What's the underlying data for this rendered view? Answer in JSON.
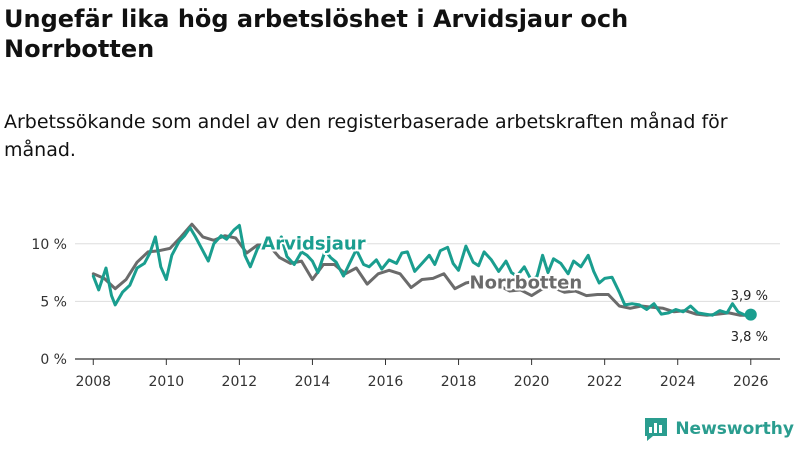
{
  "title": "Ungefär lika hög arbetslöshet i Arvidsjaur och Norrbotten",
  "subtitle": "Arbetssökande som andel av den registerbaserade arbetskraften månad för månad.",
  "brand": "Newsworthy",
  "colors": {
    "arvidsjaur": "#1a9e8f",
    "norrbotten": "#6b6b6b",
    "grid": "#dddddd",
    "axis": "#333333",
    "brand": "#2a9d8f"
  },
  "chart_data": {
    "type": "line",
    "title": "Ungefär lika hög arbetslöshet i Arvidsjaur och Norrbotten",
    "xlabel": "",
    "ylabel": "",
    "xlim": [
      2007.5,
      2026.8
    ],
    "ylim": [
      0,
      12.5
    ],
    "x_ticks": [
      2008,
      2010,
      2012,
      2014,
      2016,
      2018,
      2020,
      2022,
      2024,
      2026
    ],
    "x_tick_labels": [
      "2008",
      "2010",
      "2012",
      "2014",
      "2016",
      "2018",
      "2020",
      "2022",
      "2024",
      "2026"
    ],
    "y_ticks": [
      0,
      5,
      10
    ],
    "y_tick_labels": [
      "0 %",
      "5 %",
      "10 %"
    ],
    "grid": true,
    "series": [
      {
        "name": "Arvidsjaur",
        "label_at": [
          2012.6,
          9.5
        ],
        "points": [
          [
            2008.0,
            7.2
          ],
          [
            2008.15,
            6.0
          ],
          [
            2008.35,
            7.9
          ],
          [
            2008.5,
            5.5
          ],
          [
            2008.6,
            4.7
          ],
          [
            2008.8,
            5.8
          ],
          [
            2009.0,
            6.4
          ],
          [
            2009.2,
            7.9
          ],
          [
            2009.4,
            8.3
          ],
          [
            2009.55,
            9.2
          ],
          [
            2009.7,
            10.6
          ],
          [
            2009.85,
            8.0
          ],
          [
            2010.0,
            6.9
          ],
          [
            2010.15,
            9.0
          ],
          [
            2010.35,
            10.2
          ],
          [
            2010.5,
            10.7
          ],
          [
            2010.65,
            11.4
          ],
          [
            2010.8,
            10.6
          ],
          [
            2011.0,
            9.4
          ],
          [
            2011.15,
            8.5
          ],
          [
            2011.3,
            10.0
          ],
          [
            2011.5,
            10.7
          ],
          [
            2011.65,
            10.4
          ],
          [
            2011.85,
            11.2
          ],
          [
            2012.0,
            11.6
          ],
          [
            2012.15,
            9.0
          ],
          [
            2012.3,
            8.0
          ],
          [
            2012.5,
            9.6
          ],
          [
            2012.65,
            10.0
          ],
          [
            2012.8,
            9.8
          ],
          [
            2012.95,
            9.5
          ],
          [
            2013.15,
            10.6
          ],
          [
            2013.3,
            8.9
          ],
          [
            2013.5,
            8.2
          ],
          [
            2013.7,
            9.3
          ],
          [
            2013.85,
            9.0
          ],
          [
            2014.0,
            8.5
          ],
          [
            2014.15,
            7.5
          ],
          [
            2014.35,
            9.4
          ],
          [
            2014.5,
            8.8
          ],
          [
            2014.65,
            8.4
          ],
          [
            2014.85,
            7.2
          ],
          [
            2015.0,
            8.2
          ],
          [
            2015.2,
            9.5
          ],
          [
            2015.4,
            8.2
          ],
          [
            2015.55,
            8.0
          ],
          [
            2015.75,
            8.6
          ],
          [
            2015.9,
            7.8
          ],
          [
            2016.1,
            8.6
          ],
          [
            2016.3,
            8.3
          ],
          [
            2016.45,
            9.2
          ],
          [
            2016.6,
            9.3
          ],
          [
            2016.8,
            7.6
          ],
          [
            2017.0,
            8.3
          ],
          [
            2017.2,
            9.0
          ],
          [
            2017.35,
            8.2
          ],
          [
            2017.5,
            9.4
          ],
          [
            2017.7,
            9.7
          ],
          [
            2017.85,
            8.3
          ],
          [
            2018.0,
            7.7
          ],
          [
            2018.2,
            9.8
          ],
          [
            2018.4,
            8.4
          ],
          [
            2018.55,
            8.1
          ],
          [
            2018.7,
            9.3
          ],
          [
            2018.9,
            8.6
          ],
          [
            2019.1,
            7.6
          ],
          [
            2019.3,
            8.5
          ],
          [
            2019.45,
            7.5
          ],
          [
            2019.6,
            7.2
          ],
          [
            2019.8,
            8.0
          ],
          [
            2020.0,
            6.8
          ],
          [
            2020.15,
            7.2
          ],
          [
            2020.3,
            9.0
          ],
          [
            2020.45,
            7.5
          ],
          [
            2020.6,
            8.7
          ],
          [
            2020.8,
            8.3
          ],
          [
            2021.0,
            7.4
          ],
          [
            2021.15,
            8.5
          ],
          [
            2021.35,
            8.0
          ],
          [
            2021.55,
            9.0
          ],
          [
            2021.7,
            7.6
          ],
          [
            2021.85,
            6.6
          ],
          [
            2022.0,
            7.0
          ],
          [
            2022.2,
            7.1
          ],
          [
            2022.4,
            5.8
          ],
          [
            2022.55,
            4.7
          ],
          [
            2022.75,
            4.8
          ],
          [
            2022.95,
            4.7
          ],
          [
            2023.15,
            4.3
          ],
          [
            2023.35,
            4.8
          ],
          [
            2023.55,
            3.9
          ],
          [
            2023.75,
            4.0
          ],
          [
            2023.95,
            4.3
          ],
          [
            2024.15,
            4.1
          ],
          [
            2024.35,
            4.6
          ],
          [
            2024.55,
            4.0
          ],
          [
            2024.75,
            3.9
          ],
          [
            2024.95,
            3.8
          ],
          [
            2025.15,
            4.2
          ],
          [
            2025.35,
            4.0
          ],
          [
            2025.5,
            4.8
          ],
          [
            2025.65,
            4.1
          ],
          [
            2025.85,
            3.8
          ],
          [
            2026.0,
            3.9
          ]
        ],
        "end_value": "3,9 %"
      },
      {
        "name": "Norrbotten",
        "label_at": [
          2018.3,
          6.1
        ],
        "points": [
          [
            2008.0,
            7.4
          ],
          [
            2008.3,
            7.0
          ],
          [
            2008.6,
            6.1
          ],
          [
            2008.9,
            6.9
          ],
          [
            2009.2,
            8.4
          ],
          [
            2009.5,
            9.3
          ],
          [
            2009.8,
            9.4
          ],
          [
            2010.1,
            9.6
          ],
          [
            2010.4,
            10.6
          ],
          [
            2010.7,
            11.7
          ],
          [
            2011.0,
            10.6
          ],
          [
            2011.3,
            10.3
          ],
          [
            2011.6,
            10.7
          ],
          [
            2011.9,
            10.5
          ],
          [
            2012.2,
            9.2
          ],
          [
            2012.5,
            9.9
          ],
          [
            2012.8,
            9.9
          ],
          [
            2013.1,
            8.8
          ],
          [
            2013.4,
            8.3
          ],
          [
            2013.7,
            8.5
          ],
          [
            2014.0,
            6.9
          ],
          [
            2014.3,
            8.2
          ],
          [
            2014.6,
            8.2
          ],
          [
            2014.9,
            7.4
          ],
          [
            2015.2,
            7.9
          ],
          [
            2015.5,
            6.5
          ],
          [
            2015.8,
            7.4
          ],
          [
            2016.1,
            7.7
          ],
          [
            2016.4,
            7.4
          ],
          [
            2016.7,
            6.2
          ],
          [
            2017.0,
            6.9
          ],
          [
            2017.3,
            7.0
          ],
          [
            2017.6,
            7.4
          ],
          [
            2017.9,
            6.1
          ],
          [
            2018.2,
            6.6
          ],
          [
            2018.5,
            6.8
          ],
          [
            2018.8,
            6.7
          ],
          [
            2019.1,
            6.4
          ],
          [
            2019.4,
            5.9
          ],
          [
            2019.7,
            6.0
          ],
          [
            2020.0,
            5.5
          ],
          [
            2020.3,
            6.1
          ],
          [
            2020.6,
            6.2
          ],
          [
            2020.9,
            5.8
          ],
          [
            2021.2,
            5.9
          ],
          [
            2021.5,
            5.5
          ],
          [
            2021.8,
            5.6
          ],
          [
            2022.1,
            5.6
          ],
          [
            2022.4,
            4.6
          ],
          [
            2022.7,
            4.4
          ],
          [
            2023.0,
            4.6
          ],
          [
            2023.3,
            4.5
          ],
          [
            2023.6,
            4.4
          ],
          [
            2023.9,
            4.1
          ],
          [
            2024.2,
            4.2
          ],
          [
            2024.5,
            3.9
          ],
          [
            2024.8,
            3.8
          ],
          [
            2025.1,
            3.9
          ],
          [
            2025.4,
            4.0
          ],
          [
            2025.7,
            3.8
          ],
          [
            2026.0,
            3.8
          ]
        ],
        "end_value": "3,8 %"
      }
    ]
  }
}
